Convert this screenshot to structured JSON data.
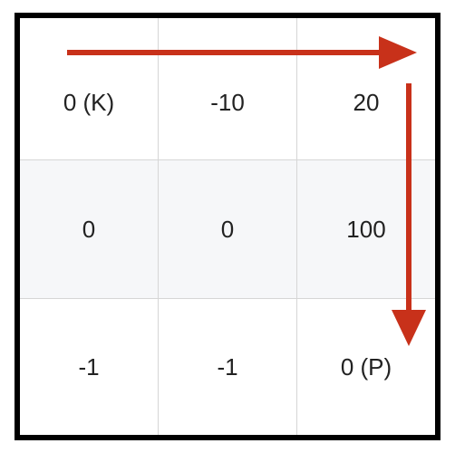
{
  "grid": {
    "rows": [
      [
        "0 (K)",
        "-10",
        "20"
      ],
      [
        "0",
        "0",
        "100"
      ],
      [
        "-1",
        "-1",
        "0 (P)"
      ]
    ]
  },
  "colors": {
    "arrow": "#c8311a",
    "border": "#000000",
    "gridline": "#d6d6d6",
    "alt_row": "#f6f7f9"
  }
}
